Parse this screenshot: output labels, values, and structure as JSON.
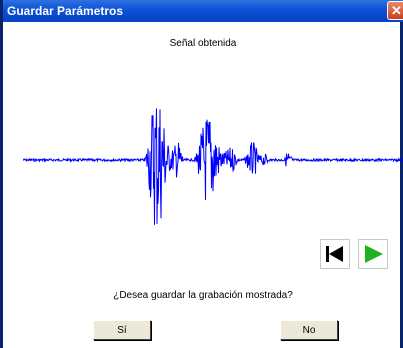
{
  "window": {
    "title": "Guardar Parámetros",
    "close_icon": "close-icon"
  },
  "signal": {
    "title": "Señal obtenida",
    "color": "#0000FF"
  },
  "controls": {
    "rewind_icon": "skip-to-start-icon",
    "play_icon": "play-icon",
    "play_color": "#22B022"
  },
  "dialog": {
    "prompt": "¿Desea guardar la grabación mostrada?",
    "yes_label": "Sí",
    "no_label": "No"
  }
}
